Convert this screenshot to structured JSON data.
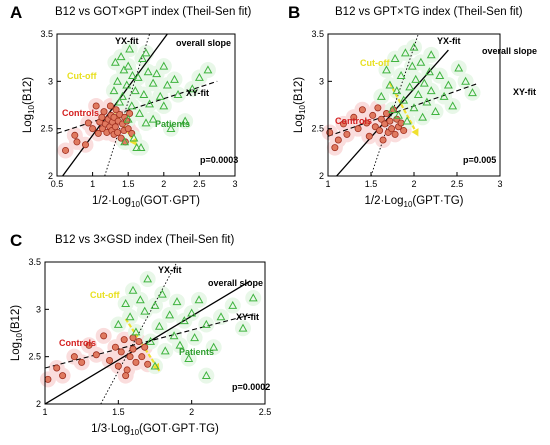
{
  "colors": {
    "controls": "#e05050",
    "controls_fill": "#e07a60",
    "controls_halo": "#f4b4b4",
    "patients": "#3fb43f",
    "patients_halo": "#cdeecd",
    "cutoff": "#f0e030",
    "text_controls": "#d42020",
    "text_patients": "#2e9e2e",
    "text_cutoff": "#e8e020"
  },
  "chart_data": [
    {
      "panel": "A",
      "type": "scatter",
      "title": "B12 vs GOT×GPT index (Theil-Sen fit)",
      "xlabel_prefix": "1/2·Log",
      "xlabel_sub": "10",
      "xlabel_suffix": "(GOT·GPT)",
      "ylabel_prefix": "Log",
      "ylabel_sub": "10",
      "ylabel_suffix": "(B12)",
      "xlim": [
        0.5,
        3
      ],
      "ylim": [
        2,
        3.5
      ],
      "xticks": [
        "0.5",
        "1",
        "1.5",
        "2",
        "2.5",
        "3"
      ],
      "yticks": [
        "2",
        "2.5",
        "3",
        "3.5"
      ],
      "lines": {
        "overall": [
          [
            0.5,
            1.92
          ],
          [
            2.05,
            3.5
          ]
        ],
        "yx": [
          [
            1.17,
            2.0
          ],
          [
            1.8,
            3.5
          ]
        ],
        "xy": [
          [
            0.5,
            2.45
          ],
          [
            2.75,
            3.0
          ]
        ]
      },
      "labels": {
        "yx": "YX-fit",
        "overall": "overall slope",
        "xy": "XY-fit",
        "cutoff": "Cut-off",
        "controls": "Controls",
        "patients": "Patients",
        "p": "p=0.0003"
      },
      "cutoff_arrow": [
        [
          1.25,
          2.75
        ],
        [
          1.62,
          2.32
        ]
      ],
      "controls": [
        [
          0.62,
          2.27
        ],
        [
          0.75,
          2.43
        ],
        [
          0.78,
          2.36
        ],
        [
          0.9,
          2.33
        ],
        [
          0.94,
          2.56
        ],
        [
          1.0,
          2.5
        ],
        [
          1.05,
          2.74
        ],
        [
          1.08,
          2.45
        ],
        [
          1.1,
          2.57
        ],
        [
          1.13,
          2.62
        ],
        [
          1.14,
          2.5
        ],
        [
          1.16,
          2.68
        ],
        [
          1.18,
          2.55
        ],
        [
          1.2,
          2.46
        ],
        [
          1.22,
          2.6
        ],
        [
          1.24,
          2.52
        ],
        [
          1.25,
          2.74
        ],
        [
          1.26,
          2.64
        ],
        [
          1.27,
          2.48
        ],
        [
          1.28,
          2.57
        ],
        [
          1.3,
          2.44
        ],
        [
          1.3,
          2.62
        ],
        [
          1.32,
          2.52
        ],
        [
          1.33,
          2.7
        ],
        [
          1.35,
          2.46
        ],
        [
          1.36,
          2.58
        ],
        [
          1.38,
          2.65
        ],
        [
          1.4,
          2.4
        ],
        [
          1.42,
          2.55
        ],
        [
          1.44,
          2.48
        ],
        [
          1.45,
          2.62
        ],
        [
          1.46,
          2.36
        ],
        [
          1.48,
          2.58
        ],
        [
          1.5,
          2.5
        ],
        [
          1.52,
          2.66
        ],
        [
          1.55,
          2.45
        ]
      ],
      "patients": [
        [
          1.3,
          2.9
        ],
        [
          1.32,
          3.2
        ],
        [
          1.35,
          3.0
        ],
        [
          1.38,
          2.78
        ],
        [
          1.4,
          3.26
        ],
        [
          1.42,
          2.84
        ],
        [
          1.44,
          3.12
        ],
        [
          1.45,
          2.36
        ],
        [
          1.48,
          2.96
        ],
        [
          1.5,
          3.16
        ],
        [
          1.5,
          2.6
        ],
        [
          1.52,
          3.34
        ],
        [
          1.55,
          2.74
        ],
        [
          1.56,
          3.06
        ],
        [
          1.58,
          2.4
        ],
        [
          1.6,
          2.9
        ],
        [
          1.62,
          2.3
        ],
        [
          1.64,
          3.04
        ],
        [
          1.66,
          2.66
        ],
        [
          1.68,
          2.3
        ],
        [
          1.7,
          3.24
        ],
        [
          1.72,
          2.86
        ],
        [
          1.75,
          2.56
        ],
        [
          1.78,
          3.1
        ],
        [
          1.8,
          2.76
        ],
        [
          1.85,
          2.98
        ],
        [
          1.9,
          3.08
        ],
        [
          1.95,
          2.84
        ],
        [
          2.0,
          2.74
        ],
        [
          2.05,
          2.96
        ],
        [
          2.1,
          2.5
        ],
        [
          2.15,
          3.02
        ],
        [
          2.2,
          2.86
        ],
        [
          2.3,
          2.58
        ],
        [
          2.4,
          2.92
        ],
        [
          2.5,
          3.04
        ],
        [
          2.62,
          3.12
        ],
        [
          2.0,
          3.16
        ],
        [
          1.75,
          3.3
        ],
        [
          1.85,
          2.6
        ]
      ]
    },
    {
      "panel": "B",
      "type": "scatter",
      "title": "B12 vs GPT×TG index (Theil-Sen fit)",
      "xlabel_prefix": "1/2·Log",
      "xlabel_sub": "10",
      "xlabel_suffix": "(GPT·TG)",
      "ylabel_prefix": "Log",
      "ylabel_sub": "10",
      "ylabel_suffix": "(B12)",
      "xlim": [
        1,
        3
      ],
      "ylim": [
        2,
        3.5
      ],
      "xticks": [
        "1",
        "1.5",
        "2",
        "2.5",
        "3"
      ],
      "yticks": [
        "2",
        "2.5",
        "3",
        "3.5"
      ],
      "lines": {
        "overall": [
          [
            1.1,
            2.0
          ],
          [
            2.4,
            3.33
          ]
        ],
        "yx": [
          [
            1.5,
            2.0
          ],
          [
            2.05,
            3.5
          ]
        ],
        "xy": [
          [
            1.0,
            2.42
          ],
          [
            2.75,
            2.98
          ]
        ]
      },
      "labels": {
        "yx": "YX-fit",
        "overall": "overall slope",
        "xy": "XY-fit",
        "cutoff": "Cut-off",
        "controls": "Controls",
        "patients": "Patients",
        "p": "p=0.005"
      },
      "cutoff_arrow": [
        [
          1.72,
          2.98
        ],
        [
          2.05,
          2.42
        ]
      ],
      "controls": [
        [
          1.02,
          2.46
        ],
        [
          1.08,
          2.3
        ],
        [
          1.12,
          2.38
        ],
        [
          1.18,
          2.55
        ],
        [
          1.22,
          2.44
        ],
        [
          1.3,
          2.62
        ],
        [
          1.35,
          2.5
        ],
        [
          1.4,
          2.7
        ],
        [
          1.45,
          2.56
        ],
        [
          1.48,
          2.42
        ],
        [
          1.52,
          2.64
        ],
        [
          1.55,
          2.52
        ],
        [
          1.58,
          2.72
        ],
        [
          1.6,
          2.48
        ],
        [
          1.62,
          2.6
        ],
        [
          1.64,
          2.38
        ],
        [
          1.66,
          2.55
        ],
        [
          1.68,
          2.66
        ],
        [
          1.7,
          2.46
        ],
        [
          1.72,
          2.58
        ],
        [
          1.74,
          2.5
        ],
        [
          1.76,
          2.7
        ],
        [
          1.78,
          2.44
        ],
        [
          1.8,
          2.6
        ],
        [
          1.82,
          2.52
        ],
        [
          1.85,
          2.56
        ],
        [
          1.88,
          2.48
        ]
      ],
      "patients": [
        [
          1.62,
          2.84
        ],
        [
          1.68,
          3.12
        ],
        [
          1.72,
          2.96
        ],
        [
          1.75,
          2.7
        ],
        [
          1.78,
          3.24
        ],
        [
          1.8,
          2.9
        ],
        [
          1.82,
          2.64
        ],
        [
          1.85,
          3.06
        ],
        [
          1.88,
          2.8
        ],
        [
          1.9,
          3.3
        ],
        [
          1.92,
          2.58
        ],
        [
          1.95,
          2.94
        ],
        [
          1.98,
          3.16
        ],
        [
          2.0,
          2.72
        ],
        [
          2.02,
          3.02
        ],
        [
          2.05,
          2.86
        ],
        [
          2.08,
          3.2
        ],
        [
          2.1,
          2.62
        ],
        [
          2.12,
          2.98
        ],
        [
          2.15,
          2.78
        ],
        [
          2.18,
          3.1
        ],
        [
          2.2,
          2.9
        ],
        [
          2.25,
          2.68
        ],
        [
          2.3,
          3.06
        ],
        [
          2.35,
          2.84
        ],
        [
          2.4,
          2.96
        ],
        [
          2.45,
          2.74
        ],
        [
          2.52,
          3.14
        ],
        [
          2.6,
          3.0
        ],
        [
          2.68,
          2.88
        ],
        [
          2.0,
          3.36
        ],
        [
          2.2,
          3.28
        ]
      ]
    },
    {
      "panel": "C",
      "type": "scatter",
      "title": "B12 vs 3×GSD index (Theil-Sen fit)",
      "xlabel_prefix": "1/3·Log",
      "xlabel_sub": "10",
      "xlabel_suffix": "(GOT·GPT·TG)",
      "ylabel_prefix": "Log",
      "ylabel_sub": "10",
      "ylabel_suffix": "(B12)",
      "xlim": [
        1,
        2.5
      ],
      "ylim": [
        2,
        3.5
      ],
      "xticks": [
        "1",
        "1.5",
        "2",
        "2.5"
      ],
      "yticks": [
        "2",
        "2.5",
        "3",
        "3.5"
      ],
      "lines": {
        "overall": [
          [
            1.0,
            2.0
          ],
          [
            2.4,
            3.3
          ]
        ],
        "yx": [
          [
            1.38,
            2.0
          ],
          [
            1.9,
            3.5
          ]
        ],
        "xy": [
          [
            1.0,
            2.38
          ],
          [
            2.42,
            2.95
          ]
        ]
      },
      "labels": {
        "yx": "YX-fit",
        "overall": "overall slope",
        "xy": "XY-fit",
        "cutoff": "Cut-off",
        "controls": "Controls",
        "patients": "Patients",
        "p": "p=0.0002"
      },
      "cutoff_arrow": [
        [
          1.55,
          2.9
        ],
        [
          1.78,
          2.35
        ]
      ],
      "controls": [
        [
          1.02,
          2.26
        ],
        [
          1.08,
          2.38
        ],
        [
          1.12,
          2.3
        ],
        [
          1.2,
          2.5
        ],
        [
          1.25,
          2.44
        ],
        [
          1.3,
          2.62
        ],
        [
          1.35,
          2.52
        ],
        [
          1.4,
          2.72
        ],
        [
          1.44,
          2.46
        ],
        [
          1.48,
          2.6
        ],
        [
          1.5,
          2.4
        ],
        [
          1.52,
          2.55
        ],
        [
          1.54,
          2.68
        ],
        [
          1.56,
          2.36
        ],
        [
          1.58,
          2.5
        ],
        [
          1.6,
          2.58
        ],
        [
          1.62,
          2.44
        ],
        [
          1.64,
          2.66
        ],
        [
          1.66,
          2.5
        ],
        [
          1.68,
          2.6
        ],
        [
          1.7,
          2.42
        ],
        [
          1.55,
          2.3
        ],
        [
          1.6,
          2.7
        ]
      ],
      "patients": [
        [
          1.5,
          2.84
        ],
        [
          1.55,
          3.06
        ],
        [
          1.58,
          2.92
        ],
        [
          1.6,
          3.2
        ],
        [
          1.62,
          2.76
        ],
        [
          1.65,
          3.1
        ],
        [
          1.68,
          2.98
        ],
        [
          1.7,
          3.32
        ],
        [
          1.72,
          2.66
        ],
        [
          1.75,
          3.04
        ],
        [
          1.78,
          2.82
        ],
        [
          1.8,
          3.16
        ],
        [
          1.82,
          2.56
        ],
        [
          1.85,
          2.94
        ],
        [
          1.88,
          2.72
        ],
        [
          1.9,
          3.08
        ],
        [
          1.92,
          2.62
        ],
        [
          1.95,
          2.88
        ],
        [
          1.98,
          2.48
        ],
        [
          2.0,
          2.96
        ],
        [
          2.02,
          2.7
        ],
        [
          2.05,
          3.1
        ],
        [
          2.1,
          2.84
        ],
        [
          2.15,
          2.6
        ],
        [
          2.2,
          2.92
        ],
        [
          2.28,
          3.04
        ],
        [
          2.35,
          2.8
        ],
        [
          2.42,
          3.12
        ],
        [
          2.1,
          2.3
        ],
        [
          1.75,
          2.4
        ]
      ]
    }
  ]
}
